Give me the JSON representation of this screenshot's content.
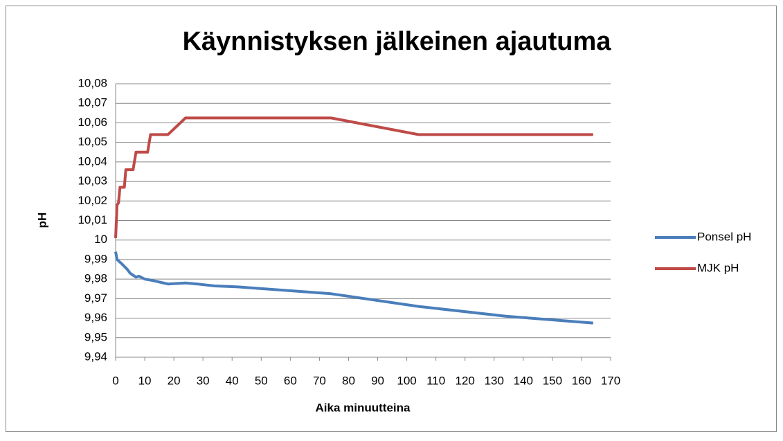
{
  "chart_data": {
    "type": "line",
    "title": "Käynnistyksen jälkeinen ajautuma",
    "x_label": "Aika minuutteina",
    "y_label": "pH",
    "xlim": [
      0,
      170
    ],
    "xticks": [
      0,
      10,
      20,
      30,
      40,
      50,
      60,
      70,
      80,
      90,
      100,
      110,
      120,
      130,
      140,
      150,
      160,
      170
    ],
    "ylim": [
      9.94,
      10.08
    ],
    "yticks": [
      {
        "value": 9.94,
        "label": "9,94"
      },
      {
        "value": 9.95,
        "label": "9,95"
      },
      {
        "value": 9.96,
        "label": "9,96"
      },
      {
        "value": 9.97,
        "label": "9,97"
      },
      {
        "value": 9.98,
        "label": "9,98"
      },
      {
        "value": 9.99,
        "label": "9,99"
      },
      10,
      {
        "value": 10.01,
        "label": "10,01"
      },
      {
        "value": 10.02,
        "label": "10,02"
      },
      {
        "value": 10.03,
        "label": "10,03"
      },
      {
        "value": 10.04,
        "label": "10,04"
      },
      {
        "value": 10.05,
        "label": "10,05"
      },
      {
        "value": 10.06,
        "label": "10,06"
      },
      {
        "value": 10.07,
        "label": "10,07"
      },
      {
        "value": 10.08,
        "label": "10,08"
      }
    ],
    "grid": true,
    "legend": "right",
    "series": [
      {
        "name": "Ponsel pH",
        "color": "#4a7ebb",
        "x": [
          0,
          0.5,
          2,
          4,
          5,
          7,
          8,
          10,
          12,
          18,
          24,
          28,
          34,
          42,
          74,
          104,
          134,
          164
        ],
        "values": [
          9.994,
          9.99,
          9.988,
          9.985,
          9.983,
          9.981,
          9.9815,
          9.98,
          9.9795,
          9.9775,
          9.978,
          9.9775,
          9.9765,
          9.976,
          9.9725,
          9.966,
          9.961,
          9.9575
        ]
      },
      {
        "name": "MJK pH",
        "color": "#be4b48",
        "x": [
          0,
          0.5,
          1,
          1.5,
          3,
          3.5,
          6,
          7,
          11,
          12,
          18,
          24,
          74,
          104,
          164
        ],
        "values": [
          10.001,
          10.018,
          10.019,
          10.027,
          10.027,
          10.036,
          10.036,
          10.045,
          10.045,
          10.054,
          10.054,
          10.0625,
          10.0625,
          10.054,
          10.054
        ]
      }
    ]
  }
}
